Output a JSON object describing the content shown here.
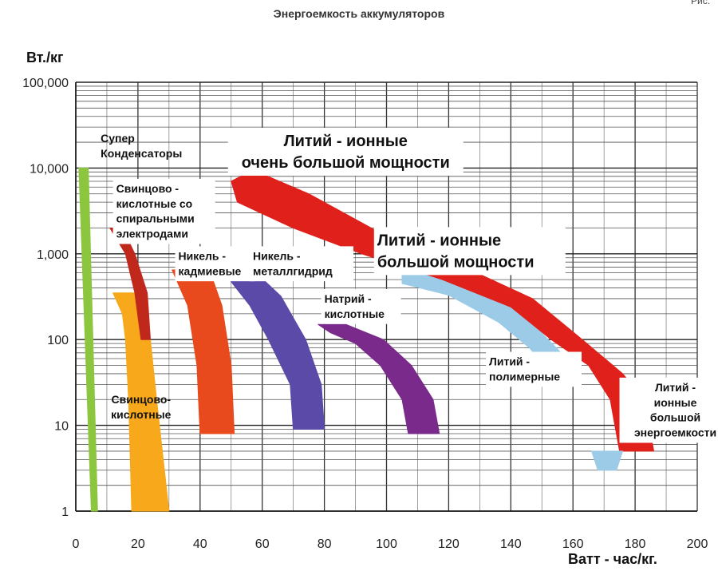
{
  "title": "Энергоемкость аккумуляторов",
  "corner_text": "Рис.",
  "chart_data": {
    "type": "area",
    "xlabel": "Ватт - час/кг.",
    "ylabel": "Вт./кг",
    "xlim": [
      0,
      200
    ],
    "ylim": [
      1,
      100000
    ],
    "y_scale": "log",
    "grid": true,
    "x_ticks": [
      "0",
      "20",
      "40",
      "60",
      "80",
      "100",
      "120",
      "140",
      "160",
      "180",
      "200"
    ],
    "y_ticks": [
      "1",
      "10",
      "100",
      "1,000",
      "10,000",
      "100,000"
    ],
    "series": [
      {
        "name": "Супер Конденсаторы",
        "color": "#8cc63f",
        "polygon": [
          [
            1,
            10000
          ],
          [
            4,
            10000
          ],
          [
            7,
            1
          ],
          [
            5,
            1
          ]
        ]
      },
      {
        "name": "Свинцово-кислотные",
        "color": "#f7a81b",
        "polygon": [
          [
            12,
            350
          ],
          [
            21,
            350
          ],
          [
            24,
            100
          ],
          [
            26,
            20
          ],
          [
            30,
            1
          ],
          [
            18,
            1
          ],
          [
            17,
            20
          ],
          [
            16,
            100
          ],
          [
            15,
            200
          ]
        ]
      },
      {
        "name": "Свинцово - кислотные со спиральными электродами",
        "color": "#c0281c",
        "polygon": [
          [
            11,
            2000
          ],
          [
            15,
            2000
          ],
          [
            19,
            1000
          ],
          [
            23,
            350
          ],
          [
            24,
            100
          ],
          [
            21,
            100
          ],
          [
            19,
            350
          ],
          [
            16,
            1000
          ]
        ]
      },
      {
        "name": "Никель - кадмиевые",
        "color": "#e8491d",
        "polygon": [
          [
            31,
            650
          ],
          [
            43,
            650
          ],
          [
            47,
            250
          ],
          [
            50,
            50
          ],
          [
            51,
            8
          ],
          [
            40,
            8
          ],
          [
            39,
            50
          ],
          [
            36,
            250
          ]
        ]
      },
      {
        "name": "Никель - металлгидрид",
        "color": "#5b4aa8",
        "polygon": [
          [
            47,
            650
          ],
          [
            57,
            650
          ],
          [
            66,
            320
          ],
          [
            74,
            100
          ],
          [
            79,
            30
          ],
          [
            80,
            9
          ],
          [
            70,
            9
          ],
          [
            69,
            30
          ],
          [
            62,
            100
          ],
          [
            56,
            250
          ]
        ]
      },
      {
        "name": "Натрий - кислотные",
        "color": "#7a2a8a",
        "polygon": [
          [
            78,
            150
          ],
          [
            87,
            150
          ],
          [
            99,
            100
          ],
          [
            108,
            50
          ],
          [
            115,
            20
          ],
          [
            117,
            8
          ],
          [
            107,
            8
          ],
          [
            105,
            20
          ],
          [
            98,
            50
          ],
          [
            90,
            90
          ],
          [
            82,
            120
          ]
        ]
      },
      {
        "name": "Литий - полимерные",
        "color": "#9ccbe8",
        "polygon": [
          [
            105,
            700
          ],
          [
            113,
            700
          ],
          [
            130,
            400
          ],
          [
            144,
            200
          ],
          [
            152,
            100
          ],
          [
            158,
            60
          ],
          [
            153,
            40
          ],
          [
            146,
            80
          ],
          [
            136,
            160
          ],
          [
            120,
            330
          ],
          [
            105,
            450
          ]
        ]
      },
      {
        "name": "Литий - ионные очень большой мощности",
        "color": "#e0201b",
        "polygon": [
          [
            50,
            7000
          ],
          [
            57,
            9500
          ],
          [
            75,
            5000
          ],
          [
            100,
            1600
          ],
          [
            125,
            700
          ],
          [
            147,
            300
          ],
          [
            163,
            100
          ],
          [
            176,
            40
          ],
          [
            183,
            20
          ],
          [
            186,
            5
          ],
          [
            175,
            5
          ],
          [
            172,
            20
          ],
          [
            165,
            50
          ],
          [
            153,
            100
          ],
          [
            140,
            240
          ],
          [
            118,
            500
          ],
          [
            92,
            1000
          ],
          [
            70,
            2000
          ],
          [
            52,
            4000
          ]
        ]
      },
      {
        "name": "Литий - ионные большой энергоемкости",
        "color": "#9ccbe8",
        "polygon": [
          [
            166,
            5
          ],
          [
            176,
            5
          ],
          [
            174,
            3
          ],
          [
            168,
            3
          ]
        ]
      }
    ],
    "annotations": [
      "Супер\nКонденсаторы",
      "Свинцово -\nкислотные со\nспиральными\nэлектродами",
      "Литий - ионные\nочень большой мощности",
      "Литий - ионные\nбольшой мощности",
      "Никель -\nкадмиевые",
      "Никель -\nметаллгидрид",
      "Натрий -\nкислотные",
      "Литий -\nполимерные",
      "Литий -\nионные\nбольшой\nэнергоемкости",
      "Свинцово-\nкислотные"
    ],
    "annotation_styles": [
      {
        "box": false,
        "size": 14,
        "x": 8,
        "y": 20000,
        "w": 0,
        "lh": 1.35
      },
      {
        "box": true,
        "size": 14,
        "x": 13,
        "y": 5200,
        "w": 128,
        "lh": 1.35
      },
      {
        "box": true,
        "size": 20,
        "x": 50,
        "y": 18000,
        "w": 295,
        "lh": 1.35,
        "center": true
      },
      {
        "box": true,
        "size": 20,
        "x": 97,
        "y": 1250,
        "w": 240,
        "lh": 1.35
      },
      {
        "box": true,
        "size": 14,
        "x": 33,
        "y": 850,
        "w": 100,
        "lh": 1.35
      },
      {
        "box": true,
        "size": 14,
        "x": 57,
        "y": 850,
        "w": 130,
        "lh": 1.35
      },
      {
        "box": true,
        "size": 14,
        "x": 80,
        "y": 270,
        "w": 100,
        "lh": 1.35
      },
      {
        "box": true,
        "size": 14,
        "x": 133,
        "y": 50,
        "w": 120,
        "lh": 1.35
      },
      {
        "box": true,
        "size": 14,
        "x": 176,
        "y": 25,
        "w": 140,
        "lh": 1.35,
        "center": true
      },
      {
        "box": false,
        "size": 14,
        "x": 21,
        "y": 18,
        "w": 0,
        "lh": 1.35,
        "center": true
      }
    ]
  }
}
